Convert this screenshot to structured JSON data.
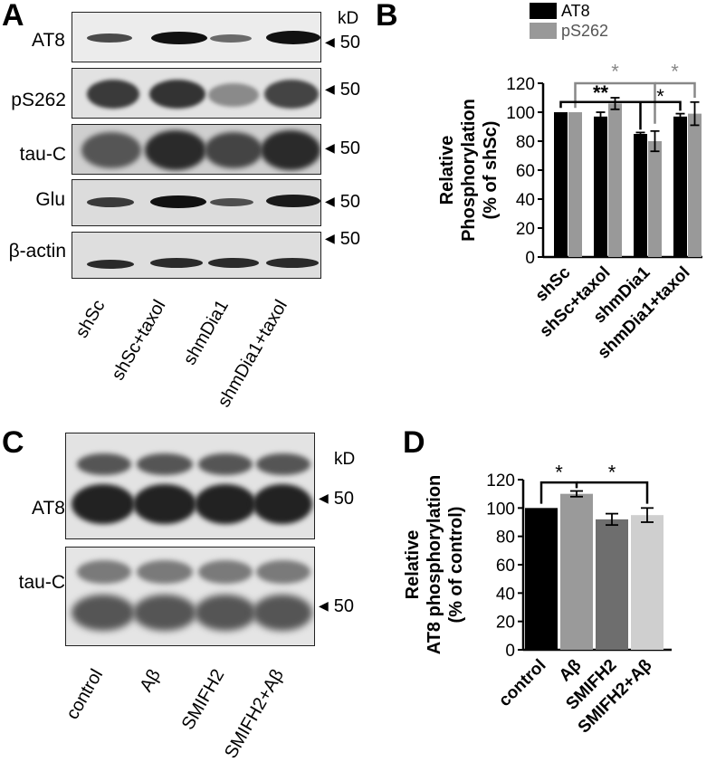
{
  "panels": {
    "A": {
      "letter": "A",
      "kd": "kD",
      "rows": [
        {
          "label": "AT8",
          "marker": "50"
        },
        {
          "label": "pS262",
          "marker": "50"
        },
        {
          "label": "tau-C",
          "marker": "50"
        },
        {
          "label": "Glu",
          "marker": "50"
        },
        {
          "label": "β-actin",
          "marker": "50"
        }
      ],
      "lanes": [
        "shSc",
        "shSc+taxol",
        "shmDia1",
        "shmDia1+taxol"
      ]
    },
    "C": {
      "letter": "C",
      "kd": "kD",
      "rows": [
        {
          "label": "AT8",
          "marker": "50"
        },
        {
          "label": "tau-C",
          "marker": "50"
        }
      ],
      "lanes": [
        "control",
        "Aβ",
        "SMIFH2",
        "SMIFH2+Aβ"
      ]
    },
    "B": {
      "letter": "B"
    },
    "D": {
      "letter": "D"
    }
  },
  "chart_data": [
    {
      "id": "B",
      "type": "bar",
      "title": "",
      "ylabel_line1": "Relative",
      "ylabel_line2": "Phosphorylation",
      "ylabel_line3": "(% of shSc)",
      "categories": [
        "shSc",
        "shSc+taxol",
        "shmDia1",
        "shmDia1+taxol"
      ],
      "ylim": [
        0,
        120
      ],
      "yticks": [
        0,
        20,
        40,
        60,
        80,
        100,
        120
      ],
      "legend_position": "top",
      "series": [
        {
          "name": "AT8",
          "color": "#000000",
          "values": [
            100,
            97,
            85,
            97
          ],
          "errors": [
            0,
            3,
            1,
            2
          ]
        },
        {
          "name": "pS262",
          "color": "#999999",
          "values": [
            100,
            106,
            80,
            99
          ],
          "errors": [
            0,
            4,
            7,
            8
          ]
        }
      ],
      "significance": [
        {
          "label": "*",
          "color": "#888888"
        },
        {
          "label": "*",
          "color": "#888888"
        },
        {
          "label": "**",
          "color": "#000000"
        },
        {
          "label": "*",
          "color": "#000000"
        }
      ]
    },
    {
      "id": "D",
      "type": "bar",
      "title": "",
      "ylabel_line1": "Relative",
      "ylabel_line2": "AT8 phosphorylation",
      "ylabel_line3": "(% of control)",
      "categories": [
        "control",
        "Aβ",
        "SMIFH2",
        "SMIFH2+Aβ"
      ],
      "ylim": [
        0,
        120
      ],
      "yticks": [
        0,
        20,
        40,
        60,
        80,
        100,
        120
      ],
      "values": [
        100,
        110,
        92,
        95
      ],
      "errors": [
        0,
        2,
        4,
        5
      ],
      "colors": [
        "#000000",
        "#9a9a9a",
        "#6e6e6e",
        "#cfcfcf"
      ],
      "significance": [
        {
          "label": "*",
          "color": "#000000"
        },
        {
          "label": "*",
          "color": "#000000"
        }
      ]
    }
  ]
}
